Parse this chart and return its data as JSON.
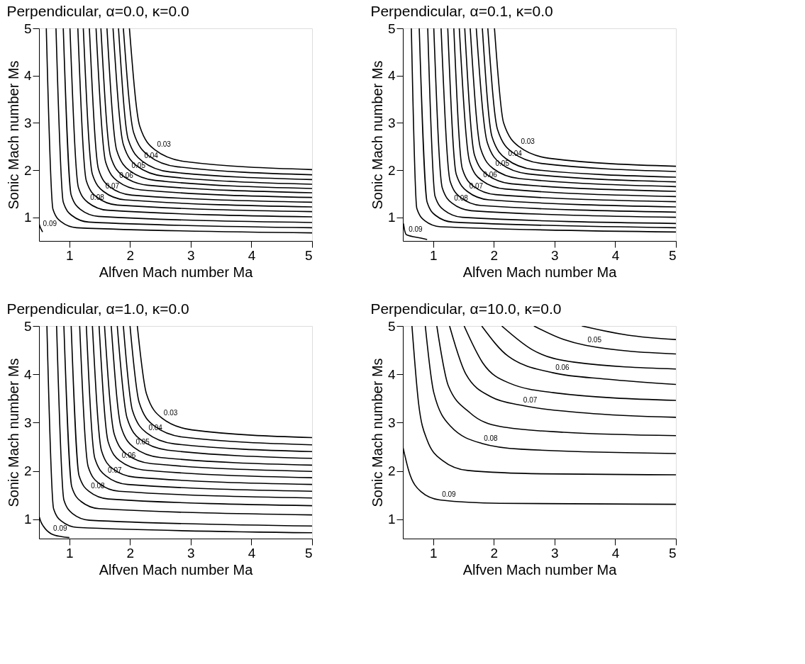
{
  "chart_data": [
    {
      "type": "line",
      "title": "Perpendicular,  α=0.0, κ=0.0",
      "xlabel": "Alfven Mach number Ma",
      "ylabel": "Sonic Mach number Ms",
      "xlim": [
        0.5,
        5
      ],
      "ylim": [
        0.5,
        5
      ],
      "xticks": [
        1,
        2,
        3,
        4,
        5
      ],
      "yticks": [
        1,
        2,
        3,
        4,
        5
      ],
      "series": [
        {
          "name": "0.03",
          "color": "#000000",
          "x": [
            1.99,
            2.16,
            2.41,
            2.91,
            5
          ],
          "values": [
            5,
            2.93,
            2.43,
            2.18,
            2.01
          ]
        },
        {
          "color": "#000000",
          "x": [
            1.89,
            2.06,
            2.3,
            2.78,
            5
          ],
          "values": [
            5,
            2.79,
            2.31,
            2.07,
            1.9
          ]
        },
        {
          "name": "0.04",
          "color": "#000000",
          "x": [
            1.81,
            1.97,
            2.2,
            2.66,
            5
          ],
          "values": [
            5,
            2.65,
            2.19,
            1.96,
            1.8
          ]
        },
        {
          "color": "#000000",
          "x": [
            1.72,
            1.89,
            2.11,
            2.56,
            5
          ],
          "values": [
            5,
            2.54,
            2.09,
            1.87,
            1.7
          ]
        },
        {
          "name": "0.05",
          "color": "#000000",
          "x": [
            1.62,
            1.78,
            1.99,
            2.42,
            5
          ],
          "values": [
            5,
            2.42,
            1.99,
            1.78,
            1.61
          ]
        },
        {
          "color": "#000000",
          "x": [
            1.52,
            1.68,
            1.88,
            2.29,
            5
          ],
          "values": [
            5,
            2.29,
            1.88,
            1.68,
            1.52
          ]
        },
        {
          "name": "0.06",
          "color": "#000000",
          "x": [
            1.44,
            1.6,
            1.79,
            2.18,
            5
          ],
          "values": [
            5,
            2.16,
            1.77,
            1.58,
            1.42
          ]
        },
        {
          "color": "#000000",
          "x": [
            1.33,
            1.48,
            1.66,
            2.03,
            5
          ],
          "values": [
            5,
            2.02,
            1.65,
            1.47,
            1.32
          ]
        },
        {
          "name": "0.07",
          "color": "#000000",
          "x": [
            1.23,
            1.38,
            1.56,
            1.92,
            5
          ],
          "values": [
            5,
            1.91,
            1.55,
            1.37,
            1.22
          ]
        },
        {
          "color": "#000000",
          "x": [
            1.14,
            1.28,
            1.45,
            1.79,
            5
          ],
          "values": [
            5,
            1.77,
            1.43,
            1.26,
            1.12
          ]
        },
        {
          "name": "0.08",
          "color": "#000000",
          "x": [
            1.01,
            1.15,
            1.31,
            1.63,
            5
          ],
          "values": [
            5,
            1.63,
            1.31,
            1.15,
            1.01
          ]
        },
        {
          "color": "#000000",
          "x": [
            0.9,
            1.03,
            1.18,
            1.48,
            5
          ],
          "values": [
            5,
            1.47,
            1.17,
            1.02,
            0.89
          ]
        },
        {
          "color": "#000000",
          "x": [
            0.78,
            0.9,
            1.04,
            1.32,
            5
          ],
          "values": [
            5,
            1.32,
            1.04,
            0.9,
            0.78
          ]
        },
        {
          "color": "#000000",
          "x": [
            0.62,
            0.73,
            0.86,
            1.12,
            5
          ],
          "values": [
            5,
            1.17,
            0.91,
            0.78,
            0.67
          ]
        },
        {
          "name": "0.09",
          "color": "#000000",
          "x": [
            0.5,
            0.53,
            0.56
          ],
          "values": [
            0.87,
            0.76,
            0.69
          ]
        }
      ]
    },
    {
      "type": "line",
      "title": "Perpendicular,  α=0.1, κ=0.0",
      "xlabel": "Alfven Mach number Ma",
      "ylabel": "Sonic Mach number Ms",
      "xlim": [
        0.5,
        5
      ],
      "ylim": [
        0.5,
        5
      ],
      "xticks": [
        1,
        2,
        3,
        4,
        5
      ],
      "yticks": [
        1,
        2,
        3,
        4,
        5
      ],
      "series": [
        {
          "name": "0.03",
          "color": "#000000",
          "x": [
            2.01,
            2.16,
            2.41,
            2.91,
            5
          ],
          "values": [
            5,
            3.0,
            2.5,
            2.25,
            2.08
          ]
        },
        {
          "color": "#000000",
          "x": [
            1.9,
            2.06,
            2.3,
            2.78,
            5
          ],
          "values": [
            5,
            2.86,
            2.38,
            2.14,
            1.97
          ]
        },
        {
          "name": "0.04",
          "color": "#000000",
          "x": [
            1.81,
            1.97,
            2.2,
            2.66,
            5
          ],
          "values": [
            5,
            2.7,
            2.24,
            2.01,
            1.85
          ]
        },
        {
          "color": "#000000",
          "x": [
            1.71,
            1.89,
            2.11,
            2.56,
            5
          ],
          "values": [
            5,
            2.59,
            2.14,
            1.92,
            1.75
          ]
        },
        {
          "name": "0.05",
          "color": "#000000",
          "x": [
            1.61,
            1.78,
            1.99,
            2.42,
            5
          ],
          "values": [
            5,
            2.46,
            2.03,
            1.82,
            1.65
          ]
        },
        {
          "color": "#000000",
          "x": [
            1.52,
            1.68,
            1.88,
            2.29,
            5
          ],
          "values": [
            5,
            2.32,
            1.91,
            1.71,
            1.55
          ]
        },
        {
          "name": "0.06",
          "color": "#000000",
          "x": [
            1.43,
            1.6,
            1.79,
            2.18,
            5
          ],
          "values": [
            5,
            2.18,
            1.79,
            1.6,
            1.44
          ]
        },
        {
          "color": "#000000",
          "x": [
            1.34,
            1.48,
            1.66,
            2.03,
            5
          ],
          "values": [
            5,
            2.03,
            1.66,
            1.48,
            1.33
          ]
        },
        {
          "name": "0.07",
          "color": "#000000",
          "x": [
            1.24,
            1.38,
            1.56,
            1.92,
            5
          ],
          "values": [
            5,
            1.91,
            1.55,
            1.37,
            1.22
          ]
        },
        {
          "color": "#000000",
          "x": [
            1.13,
            1.28,
            1.45,
            1.79,
            5
          ],
          "values": [
            5,
            1.76,
            1.42,
            1.25,
            1.11
          ]
        },
        {
          "name": "0.08",
          "color": "#000000",
          "x": [
            1.01,
            1.15,
            1.31,
            1.63,
            5
          ],
          "values": [
            5,
            1.62,
            1.3,
            1.14,
            1.0
          ]
        },
        {
          "color": "#000000",
          "x": [
            0.91,
            1.03,
            1.18,
            1.48,
            5
          ],
          "values": [
            5,
            1.45,
            1.15,
            1.0,
            0.87
          ]
        },
        {
          "color": "#000000",
          "x": [
            0.77,
            0.9,
            1.04,
            1.32,
            5
          ],
          "values": [
            5,
            1.32,
            1.04,
            0.9,
            0.78
          ]
        },
        {
          "color": "#000000",
          "x": [
            0.64,
            0.73,
            0.86,
            1.12,
            5
          ],
          "values": [
            5,
            1.19,
            0.93,
            0.8,
            0.69
          ]
        },
        {
          "name": "0.09",
          "color": "#000000",
          "x": [
            0.51,
            0.53,
            0.56,
            0.8,
            0.9
          ],
          "values": [
            0.87,
            0.72,
            0.63,
            0.56,
            0.53
          ]
        }
      ]
    },
    {
      "type": "line",
      "title": "Perpendicular,  α=1.0, κ=0.0",
      "xlabel": "Alfven Mach number Ma",
      "ylabel": "Sonic Mach number Ms",
      "xlim": [
        0.5,
        5
      ],
      "ylim": [
        0.6,
        5
      ],
      "xticks": [
        1,
        2,
        3,
        4,
        5
      ],
      "yticks": [
        1,
        2,
        3,
        4,
        5
      ],
      "series": [
        {
          "name": "0.03",
          "color": "#000000",
          "x": [
            2.12,
            2.27,
            2.52,
            3.02,
            5
          ],
          "values": [
            5,
            3.6,
            3.1,
            2.85,
            2.69
          ]
        },
        {
          "color": "#000000",
          "x": [
            2.0,
            2.15,
            2.39,
            2.87,
            5
          ],
          "values": [
            5,
            3.42,
            2.94,
            2.7,
            2.54
          ]
        },
        {
          "name": "0.04",
          "color": "#000000",
          "x": [
            1.89,
            2.04,
            2.27,
            2.73,
            5
          ],
          "values": [
            5,
            3.25,
            2.79,
            2.56,
            2.4
          ]
        },
        {
          "color": "#000000",
          "x": [
            1.79,
            1.95,
            2.17,
            2.62,
            5
          ],
          "values": [
            5,
            3.1,
            2.65,
            2.43,
            2.26
          ]
        },
        {
          "name": "0.05",
          "color": "#000000",
          "x": [
            1.69,
            1.85,
            2.06,
            2.49,
            5
          ],
          "values": [
            5,
            2.92,
            2.49,
            2.28,
            2.12
          ]
        },
        {
          "color": "#000000",
          "x": [
            1.58,
            1.74,
            1.94,
            2.35,
            5
          ],
          "values": [
            5,
            2.76,
            2.35,
            2.15,
            1.99
          ]
        },
        {
          "name": "0.06",
          "color": "#000000",
          "x": [
            1.49,
            1.64,
            1.83,
            2.22,
            5
          ],
          "values": [
            5,
            2.6,
            2.21,
            2.02,
            1.86
          ]
        },
        {
          "color": "#000000",
          "x": [
            1.38,
            1.53,
            1.71,
            2.08,
            5
          ],
          "values": [
            5,
            2.42,
            2.05,
            1.87,
            1.72
          ]
        },
        {
          "name": "0.07",
          "color": "#000000",
          "x": [
            1.28,
            1.42,
            1.6,
            1.96,
            5
          ],
          "values": [
            5,
            2.26,
            1.9,
            1.72,
            1.58
          ]
        },
        {
          "color": "#000000",
          "x": [
            1.17,
            1.31,
            1.48,
            1.82,
            5
          ],
          "values": [
            5,
            2.09,
            1.75,
            1.58,
            1.44
          ]
        },
        {
          "name": "0.08",
          "color": "#000000",
          "x": [
            1.03,
            1.16,
            1.32,
            1.64,
            5
          ],
          "values": [
            5,
            1.9,
            1.58,
            1.42,
            1.28
          ]
        },
        {
          "color": "#000000",
          "x": [
            0.91,
            1.04,
            1.19,
            1.49,
            5
          ],
          "values": [
            5,
            1.67,
            1.37,
            1.22,
            1.09
          ]
        },
        {
          "color": "#000000",
          "x": [
            0.79,
            0.91,
            1.05,
            1.33,
            5
          ],
          "values": [
            5,
            1.4,
            1.12,
            0.98,
            0.86
          ]
        },
        {
          "color": "#000000",
          "x": [
            0.63,
            0.74,
            0.87,
            1.13,
            5
          ],
          "values": [
            5,
            1.22,
            0.96,
            0.83,
            0.72
          ]
        },
        {
          "name": "0.09",
          "color": "#000000",
          "x": [
            0.5,
            0.53,
            0.57,
            0.7,
            0.87,
            1.0
          ],
          "values": [
            1.07,
            0.95,
            0.86,
            0.7,
            0.64,
            0.62
          ]
        }
      ]
    },
    {
      "type": "line",
      "title": "Perpendicular,  α=10.0, κ=0.0",
      "xlabel": "Alfven Mach number Ma",
      "ylabel": "Sonic Mach number Ms",
      "xlim": [
        0.5,
        5
      ],
      "ylim": [
        0.6,
        5
      ],
      "xticks": [
        1,
        2,
        3,
        4,
        5
      ],
      "yticks": [
        1,
        2,
        3,
        4,
        5
      ],
      "series": [
        {
          "color": "#000000",
          "x": [
            3.45,
            4.21,
            5
          ],
          "values": [
            5,
            4.81,
            4.72
          ]
        },
        {
          "name": "0.05",
          "color": "#000000",
          "x": [
            2.66,
            3.15,
            3.51,
            5
          ],
          "values": [
            5,
            4.72,
            4.6,
            4.42
          ]
        },
        {
          "color": "#000000",
          "x": [
            2.13,
            2.63,
            3.33,
            5
          ],
          "values": [
            5,
            4.51,
            4.25,
            4.11
          ]
        },
        {
          "name": "0.06",
          "color": "#000000",
          "x": [
            1.8,
            2.24,
            2.98,
            3.86,
            5
          ],
          "values": [
            5,
            4.37,
            4.03,
            3.9,
            3.79
          ]
        },
        {
          "color": "#000000",
          "x": [
            1.51,
            1.82,
            2.27,
            2.98,
            5
          ],
          "values": [
            5,
            4.23,
            3.81,
            3.62,
            3.46
          ]
        },
        {
          "name": "0.07",
          "color": "#000000",
          "x": [
            1.27,
            1.54,
            1.96,
            2.45,
            3.51,
            5
          ],
          "values": [
            5,
            4.0,
            3.53,
            3.36,
            3.2,
            3.11
          ]
        },
        {
          "color": "#000000",
          "x": [
            1.06,
            1.25,
            1.61,
            2.1,
            3.15,
            5
          ],
          "values": [
            5,
            3.76,
            3.2,
            2.92,
            2.8,
            2.73
          ]
        },
        {
          "name": "0.08",
          "color": "#000000",
          "x": [
            0.87,
            1.01,
            1.29,
            1.8,
            2.45,
            5
          ],
          "values": [
            5,
            3.62,
            2.92,
            2.57,
            2.45,
            2.36
          ]
        },
        {
          "color": "#000000",
          "x": [
            0.65,
            0.76,
            0.9,
            1.15,
            1.57,
            2.8,
            5
          ],
          "values": [
            5,
            3.39,
            2.64,
            2.22,
            2.01,
            1.94,
            1.92
          ]
        },
        {
          "name": "0.09",
          "color": "#000000",
          "x": [
            0.5,
            0.6,
            0.8,
            1.11,
            2.1,
            5
          ],
          "values": [
            2.5,
            1.99,
            1.57,
            1.4,
            1.33,
            1.31
          ]
        }
      ]
    }
  ]
}
